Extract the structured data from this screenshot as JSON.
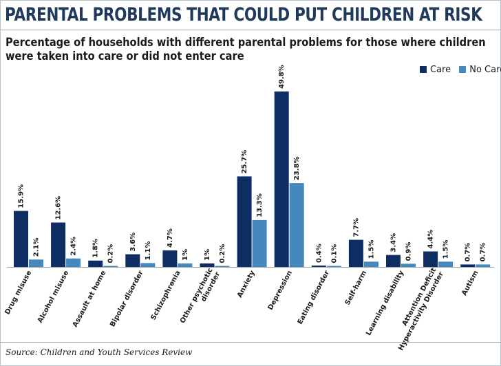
{
  "title": "PARENTAL PROBLEMS THAT COULD PUT CHILDREN AT RISK",
  "subtitle": "Percentage of households with different parental problems for those where children were taken into care or did not enter care",
  "source": "Source: Children and Youth Services Review",
  "colors": {
    "care": "#0e2d63",
    "no_care": "#4488bd",
    "title": "#1f3a5a"
  },
  "chart_data": {
    "type": "bar",
    "categories": [
      "Drug misuse",
      "Alcohol misuse",
      "Assault at home",
      "Bipolar disorder",
      "Schizophrenia",
      "Other psychotic disorder",
      "Anxiety",
      "Depression",
      "Eating disorder",
      "Self-harm",
      "Learning disability",
      "Attention Deficit Hyperactivity Disorder",
      "Autism"
    ],
    "category_lines": [
      [
        "Drug misuse"
      ],
      [
        "Alcohol misuse"
      ],
      [
        "Assault at home"
      ],
      [
        "Bipolar disorder"
      ],
      [
        "Schizophrenia"
      ],
      [
        "Other psychotic",
        "disorder"
      ],
      [
        "Anxiety"
      ],
      [
        "Depression"
      ],
      [
        "Eating disorder"
      ],
      [
        "Self-harm"
      ],
      [
        "Learning disability"
      ],
      [
        "Attention Deficit",
        "Hyperactivity Disorder"
      ],
      [
        "Autism"
      ]
    ],
    "series": [
      {
        "name": "Care",
        "values": [
          15.9,
          12.6,
          1.8,
          3.6,
          4.7,
          1,
          25.7,
          49.8,
          0.4,
          7.7,
          3.4,
          4.4,
          0.7
        ],
        "labels": [
          "15.9%",
          "12.6%",
          "1.8%",
          "3.6%",
          "4.7%",
          "1%",
          "25.7%",
          "49.8%",
          "0.4%",
          "7.7%",
          "3.4%",
          "4.4%",
          "0.7%"
        ]
      },
      {
        "name": "No Care",
        "values": [
          2.1,
          2.4,
          0.2,
          1.1,
          1,
          0.2,
          13.3,
          23.8,
          0.1,
          1.5,
          0.9,
          1.5,
          0.7
        ],
        "labels": [
          "2.1%",
          "2.4%",
          "0.2%",
          "1.1%",
          "1%",
          "0.2%",
          "13.3%",
          "23.8%",
          "0.1%",
          "1.5%",
          "0.9%",
          "1.5%",
          "0.7%"
        ]
      }
    ],
    "ylim": [
      0,
      50
    ],
    "grid": false,
    "legend": "top-right"
  }
}
